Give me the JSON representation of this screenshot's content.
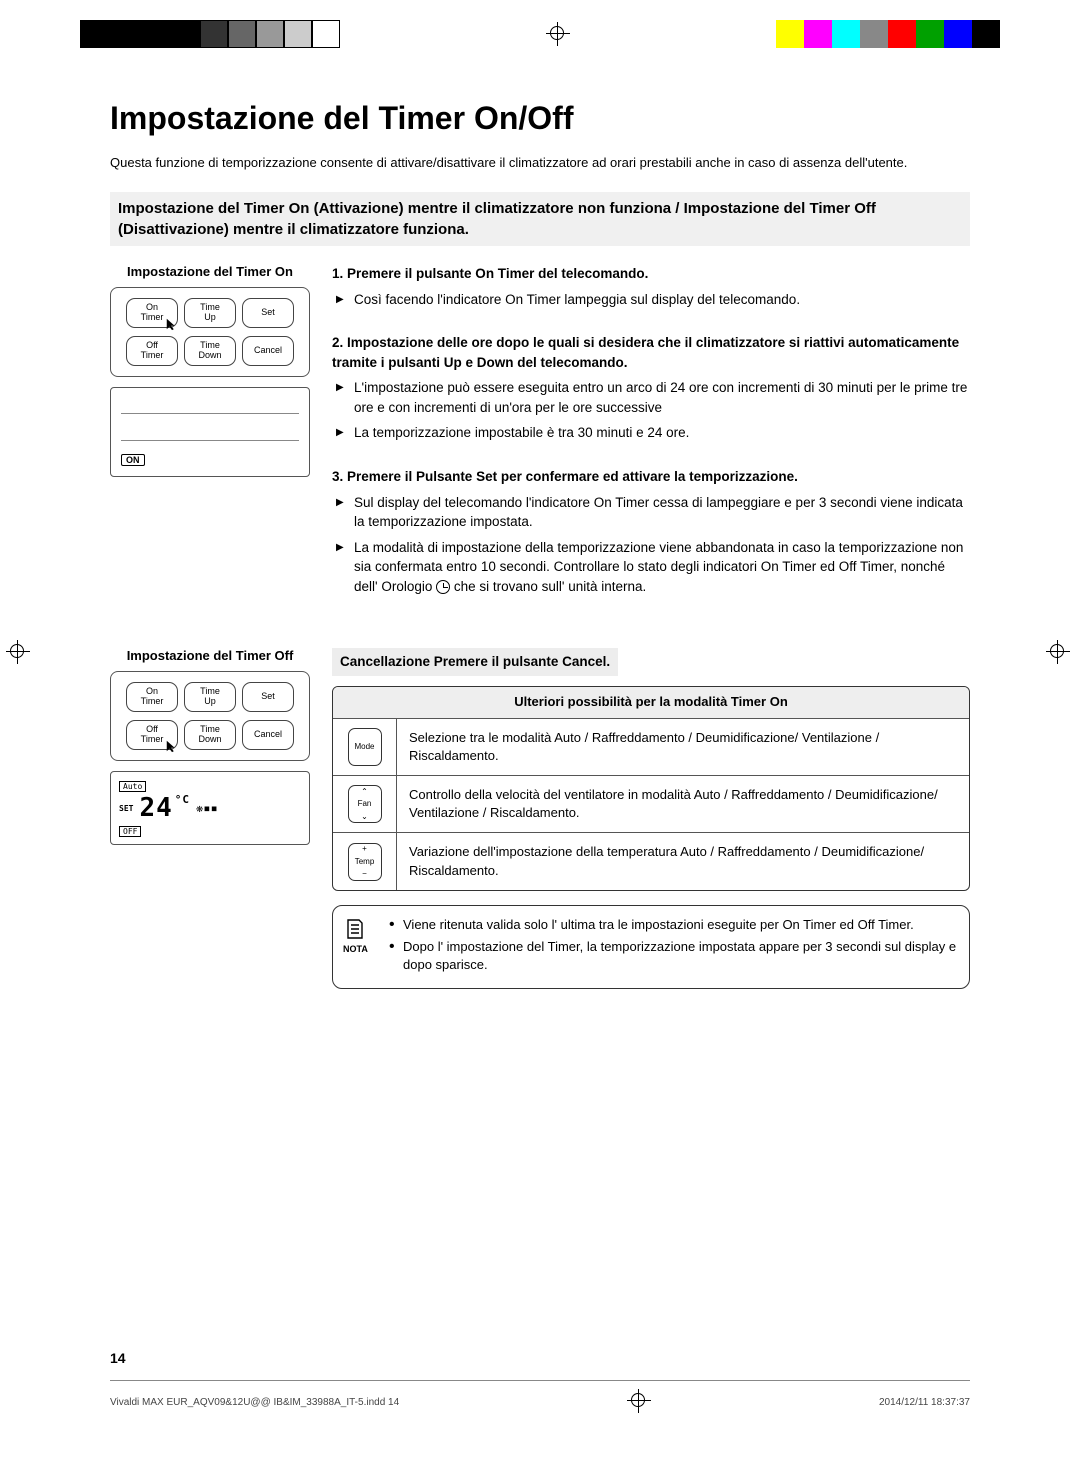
{
  "reg_colors": [
    "#ffff00",
    "#ff00ff",
    "#00ffff",
    "#888888",
    "#ff0000",
    "#00a000",
    "#0000ff",
    "#000000"
  ],
  "title": "Impostazione del Timer On/Off",
  "intro": "Questa funzione di temporizzazione consente di attivare/disattivare il climatizzatore ad orari prestabili anche in caso di assenza dell'utente.",
  "subhead": "Impostazione del Timer On (Attivazione) mentre il climatizzatore non funziona / Impostazione del Timer Off (Disattivazione) mentre il climatizzatore  funziona.",
  "left_on_title": "Impostazione del Timer On",
  "left_off_title": "Impostazione del Timer Off",
  "btn_on_timer": "On\nTimer",
  "btn_time_up": "Time\nUp",
  "btn_set": "Set",
  "btn_off_timer": "Off\nTimer",
  "btn_time_down": "Time\nDown",
  "btn_cancel": "Cancel",
  "badge_on": "ON",
  "badge_off": "OFF",
  "badge_auto": "Auto",
  "badge_set": "SET",
  "temp_value": "24",
  "temp_unit": "°C",
  "steps": {
    "s1_title": "1.    Premere il pulsante On Timer del telecomando.",
    "s1_a": "Così facendo l'indicatore On Timer  lampeggia sul display del telecomando.",
    "s2_title": "2.    Impostazione delle ore dopo le quali  si desidera che il climatizzatore si riattivi automaticamente tramite i pulsanti Up e Down del telecomando.",
    "s2_a": "L'impostazione può essere eseguita entro un arco di 24 ore con incrementi di 30 minuti per le prime tre ore e con incrementi di un'ora per le ore successive",
    "s2_b": "La temporizzazione impostabile è tra 30 minuti e 24 ore.",
    "s3_title": "3.    Premere il Pulsante Set per confermare ed attivare  la temporizzazione.",
    "s3_a": "Sul display del telecomando l'indicatore On Timer cessa di lampeggiare e per 3 secondi viene indicata la temporizzazione impostata.",
    "s3_b_pre": "La modalità di impostazione della temporizzazione viene abbandonata in caso la temporizzazione non sia confermata entro 10 secondi.  Controllare lo stato degli indicatori On Timer ed Off Timer, nonché dell' Orologio ",
    "s3_b_post": " che si trovano sull' unità interna."
  },
  "cancel_label": "Cancellazione   Premere il pulsante Cancel.",
  "table_head": "Ulteriori possibilità  per la modalità Timer On",
  "table_mode_label": "Mode",
  "table_mode_text": "Selezione tra le modalità Auto / Raffreddamento / Deumidificazione/ Ventilazione  / Riscaldamento.",
  "table_fan_label": "Fan",
  "table_fan_text": "Controllo della velocità del ventilatore in  modalità Auto / Raffreddamento / Deumidificazione/ Ventilazione  / Riscaldamento.",
  "table_temp_label": "Temp",
  "table_temp_text": "Variazione dell'impostazione della temperatura Auto / Raffreddamento / Deumidificazione/ Riscaldamento.",
  "nota_label": "NOTA",
  "nota_1": "Viene ritenuta valida solo  l' ultima tra le impostazioni eseguite per  On Timer ed Off Timer.",
  "nota_2": "Dopo l' impostazione del Timer, la temporizzazione impostata appare per 3 secondi sul display e dopo sparisce.",
  "page_number": "14",
  "footer_left": "Vivaldi MAX EUR_AQV09&12U@@ IB&IM_33988A_IT-5.indd   14",
  "footer_right": "2014/12/11   18:37:37"
}
